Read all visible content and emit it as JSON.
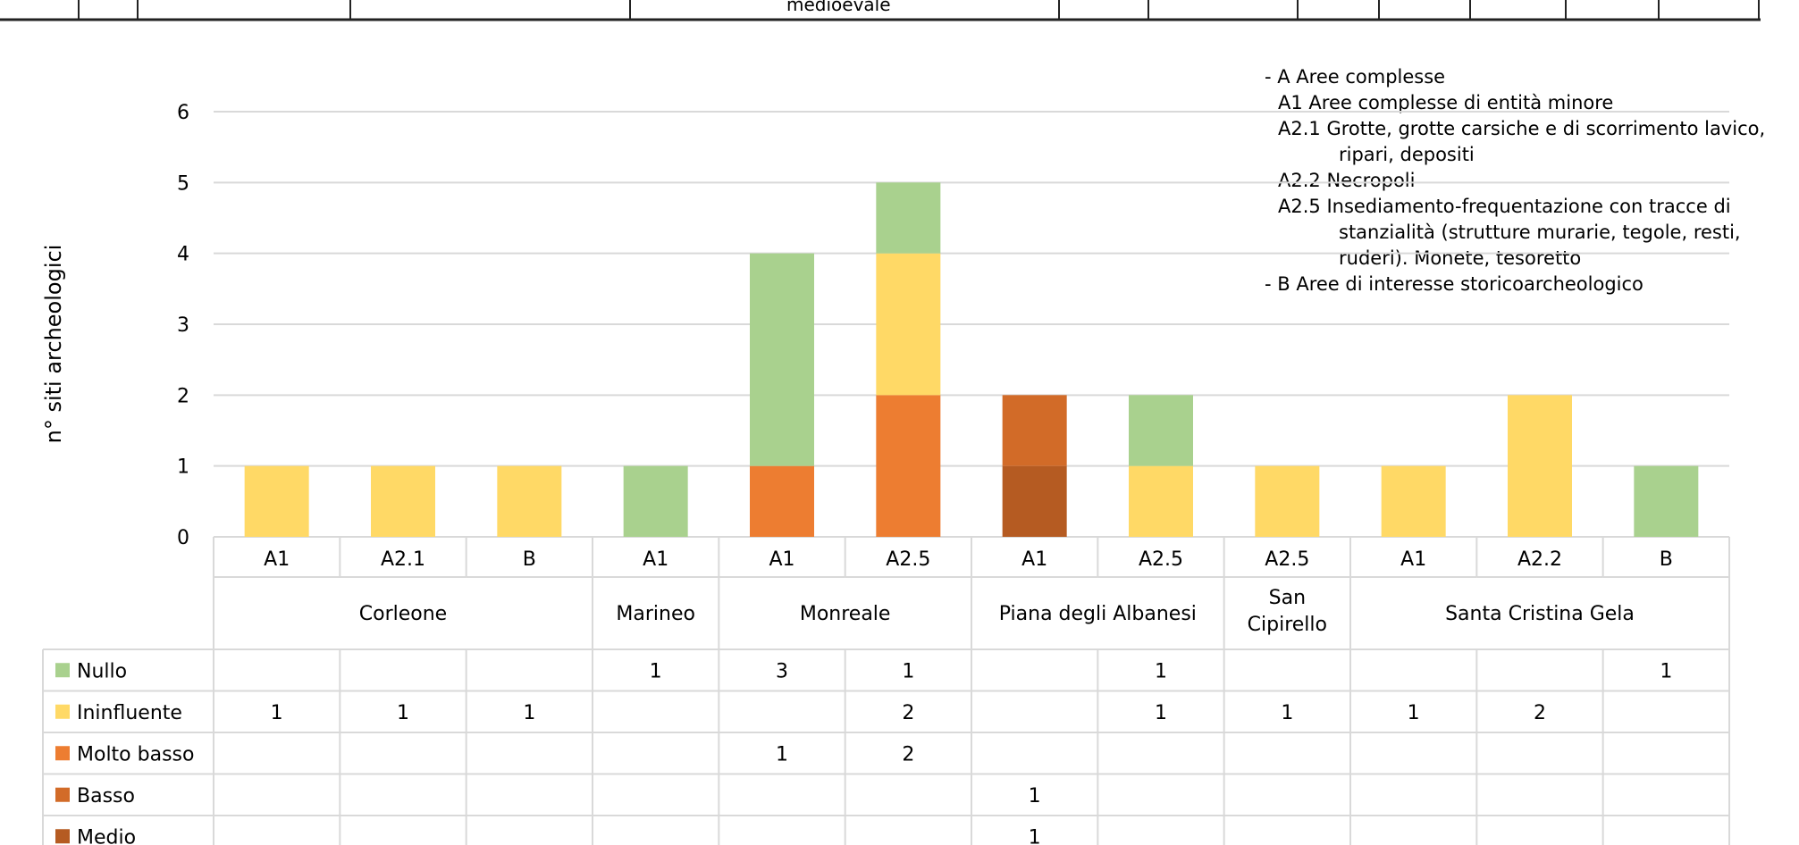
{
  "top_strip": {
    "fragment_text": "medioevale"
  },
  "legend_note": {
    "lines": [
      "- A Aree complesse",
      "A1 Aree complesse di entità minore",
      "A2.1 Grotte, grotte carsiche e di  scorrimento lavico,",
      "ripari, depositi",
      "A2.2 Necropoli",
      "A2.5 Insediamento-frequentazione con tracce di",
      "stanzialità (strutture murarie, tegole, resti,",
      "ruderi). Monete, tesoretto",
      "- B Aree di interesse storicoarcheologico"
    ]
  },
  "chart_data": {
    "type": "bar",
    "stacked": true,
    "ylabel": "n° siti archeologici",
    "ylim": [
      0,
      6
    ],
    "yticks": [
      0,
      1,
      2,
      3,
      4,
      5,
      6
    ],
    "grid": true,
    "categories": [
      "A1",
      "A2.1",
      "B",
      "A1",
      "A1",
      "A2.5",
      "A1",
      "A2.5",
      "A2.5",
      "A1",
      "A2.2",
      "B"
    ],
    "groups": [
      {
        "name": "Corleone",
        "span": 3
      },
      {
        "name": "Marineo",
        "span": 1
      },
      {
        "name": "Monreale",
        "span": 2
      },
      {
        "name": "Piana degli Albanesi",
        "span": 2
      },
      {
        "name": "San Cipirello",
        "span": 1
      },
      {
        "name": "Santa Cristina Gela",
        "span": 3
      }
    ],
    "series": [
      {
        "name": "Medio",
        "color": "#B55B22",
        "values": [
          null,
          null,
          null,
          null,
          null,
          null,
          1,
          null,
          null,
          null,
          null,
          null
        ]
      },
      {
        "name": "Basso",
        "color": "#D26B28",
        "values": [
          null,
          null,
          null,
          null,
          null,
          null,
          1,
          null,
          null,
          null,
          null,
          null
        ]
      },
      {
        "name": "Molto basso",
        "color": "#ED7D31",
        "values": [
          null,
          null,
          null,
          null,
          1,
          2,
          null,
          null,
          null,
          null,
          null,
          null
        ]
      },
      {
        "name": "Ininfluente",
        "color": "#FFD966",
        "values": [
          1,
          1,
          1,
          null,
          null,
          2,
          null,
          1,
          1,
          1,
          2,
          null
        ]
      },
      {
        "name": "Nullo",
        "color": "#A9D18E",
        "values": [
          null,
          null,
          null,
          1,
          3,
          1,
          null,
          1,
          null,
          null,
          null,
          1
        ]
      }
    ],
    "table_row_order": [
      "Nullo",
      "Ininfluente",
      "Molto basso",
      "Basso",
      "Medio"
    ]
  }
}
